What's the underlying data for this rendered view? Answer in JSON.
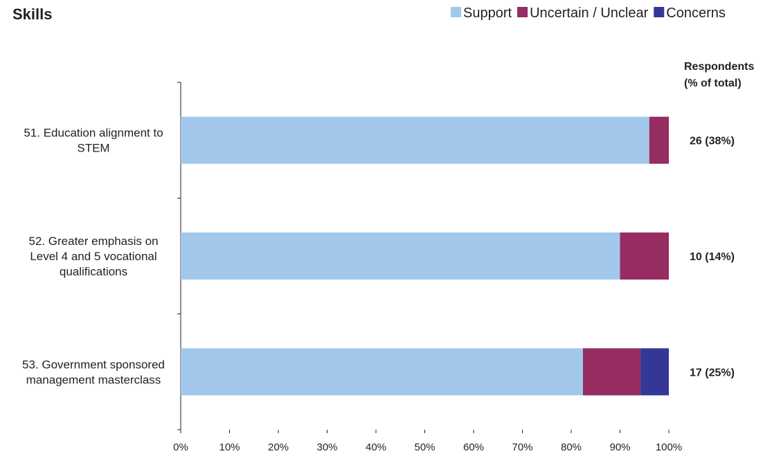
{
  "chart_data": {
    "type": "bar",
    "orientation": "horizontal",
    "stacked": true,
    "title": "Skills",
    "categories": [
      [
        "51. Education alignment to",
        "STEM"
      ],
      [
        "52. Greater emphasis on",
        "Level 4 and 5 vocational",
        "qualifications"
      ],
      [
        "53. Government sponsored",
        "management masterclass"
      ]
    ],
    "series": [
      {
        "name": "Support",
        "color": "#a1c8ea",
        "values": [
          96,
          90,
          82.4
        ]
      },
      {
        "name": "Uncertain / Unclear",
        "color": "#952c62",
        "values": [
          4,
          10,
          11.8
        ]
      },
      {
        "name": "Concerns",
        "color": "#343795",
        "values": [
          0,
          0,
          5.8
        ]
      }
    ],
    "xlim": [
      0,
      100
    ],
    "xticks": [
      "0%",
      "10%",
      "20%",
      "30%",
      "40%",
      "50%",
      "60%",
      "70%",
      "80%",
      "90%",
      "100%"
    ],
    "legend_position": "top-right",
    "grid": false,
    "respondents_header": [
      "Respondents",
      "(% of total)"
    ],
    "respondents": [
      "26 (38%)",
      "10 (14%)",
      "17 (25%)"
    ]
  }
}
